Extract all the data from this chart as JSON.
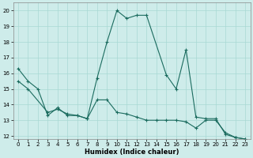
{
  "xlabel": "Humidex (Indice chaleur)",
  "background_color": "#ceecea",
  "grid_color": "#a8d8d4",
  "line_color": "#1a6b5e",
  "xlim": [
    -0.5,
    23.5
  ],
  "ylim": [
    11.8,
    20.5
  ],
  "yticks": [
    12,
    13,
    14,
    15,
    16,
    17,
    18,
    19,
    20
  ],
  "xticks": [
    0,
    1,
    2,
    3,
    4,
    5,
    6,
    7,
    8,
    9,
    10,
    11,
    12,
    13,
    14,
    15,
    16,
    17,
    18,
    19,
    20,
    21,
    22,
    23
  ],
  "line1_x": [
    0,
    1,
    2,
    3,
    4,
    5,
    6,
    7,
    8,
    9,
    10,
    11,
    12,
    13,
    15,
    16,
    17,
    18,
    19,
    20,
    21,
    22,
    23
  ],
  "line1_y": [
    16.3,
    15.5,
    15.0,
    13.3,
    13.8,
    13.3,
    13.3,
    13.1,
    15.7,
    18.0,
    20.0,
    19.5,
    19.7,
    19.7,
    15.9,
    15.0,
    17.5,
    13.2,
    13.1,
    13.1,
    12.1,
    11.9,
    11.8
  ],
  "line2_x": [
    0,
    1,
    3,
    4,
    5,
    6,
    7,
    8,
    9,
    10,
    11,
    12,
    13,
    14,
    15,
    16,
    17,
    18,
    19,
    20,
    21,
    22,
    23
  ],
  "line2_y": [
    15.5,
    15.0,
    13.5,
    13.7,
    13.4,
    13.3,
    13.1,
    14.3,
    14.3,
    13.5,
    13.4,
    13.2,
    13.0,
    13.0,
    13.0,
    13.0,
    12.9,
    12.5,
    13.0,
    13.0,
    12.2,
    11.9,
    11.8
  ]
}
